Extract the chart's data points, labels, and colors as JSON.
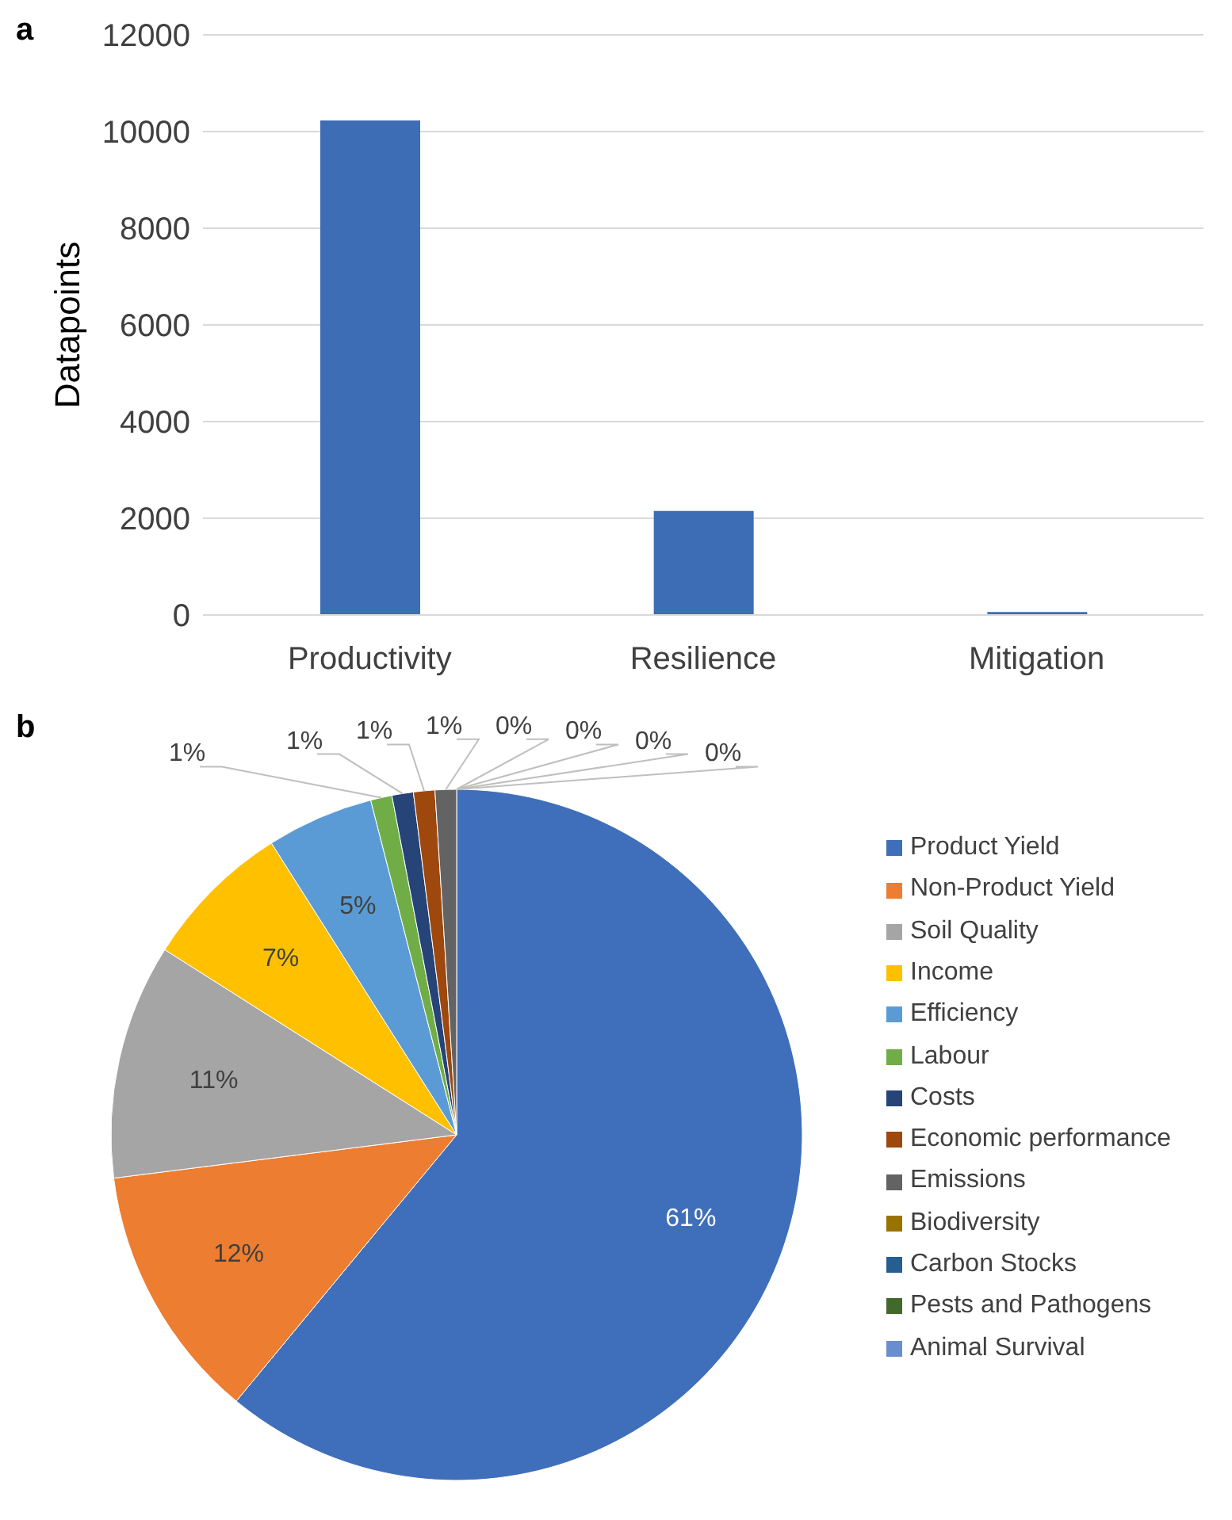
{
  "chart_data": [
    {
      "type": "bar",
      "title": "a",
      "ylabel": "Datapoints",
      "categories": [
        "Productivity",
        "Resilience",
        "Mitigation"
      ],
      "values": [
        10230,
        2150,
        60
      ],
      "color": "#3d6db5",
      "ylim": [
        0,
        12000
      ],
      "yticks": [
        0,
        2000,
        4000,
        6000,
        8000,
        10000,
        12000
      ],
      "grid": "y",
      "legend": false
    },
    {
      "type": "pie",
      "title": "b",
      "categories": [
        "Product Yield",
        "Non-Product Yield",
        "Soil Quality",
        "Income",
        "Efficiency",
        "Labour",
        "Costs",
        "Economic performance",
        "Emissions",
        "Biodiversity",
        "Carbon Stocks",
        "Pests and Pathogens",
        "Animal Survival"
      ],
      "values": [
        61,
        12,
        11,
        7,
        5,
        1,
        1,
        1,
        1,
        0,
        0,
        0,
        0
      ],
      "value_labels": [
        "61%",
        "12%",
        "11%",
        "7%",
        "5%",
        "1%",
        "1%",
        "1%",
        "1%",
        "0%",
        "0%",
        "0%",
        "0%"
      ],
      "colors": [
        "#3f6fba",
        "#ed7d31",
        "#a5a5a5",
        "#ffc000",
        "#5b9bd5",
        "#70ad47",
        "#264478",
        "#9e480e",
        "#636363",
        "#997300",
        "#255e91",
        "#43682b",
        "#698ed0"
      ],
      "legend": "right"
    }
  ]
}
